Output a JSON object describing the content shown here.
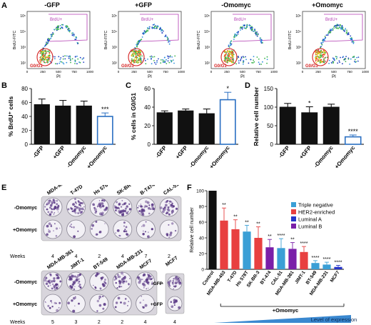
{
  "panels": {
    "A": "A",
    "B": "B",
    "C": "C",
    "D": "D",
    "E": "E",
    "F": "F"
  },
  "flow": {
    "titles": [
      "-GFP",
      "+GFP",
      "-Omomyc",
      "+Omomyc"
    ],
    "gate_brdu": "BrdU+",
    "gate_g0g1": "G0/G1",
    "ylabel": "BrdU-FITC",
    "xlabel": "PI",
    "yticks": [
      "10⁵",
      "10⁴",
      "10³",
      "10²"
    ],
    "xticks": [
      "0",
      "250",
      "500",
      "750",
      "1000"
    ]
  },
  "colors": {
    "black_bar": "#111111",
    "omomyc_bar": "#2a6fc2",
    "triple_negative": "#3a9fd6",
    "her2": "#e84040",
    "luminal_a": "#2635c9",
    "luminal_b": "#7a1fa8",
    "control": "#111111",
    "wedge": "#3a88d0"
  },
  "chart_data": [
    {
      "type": "bar",
      "categories": [
        "-GFP",
        "+GFP",
        "-Omomyc",
        "+Omomyc"
      ],
      "values": [
        57,
        55,
        55,
        40
      ],
      "errors": [
        8,
        8,
        7,
        5
      ],
      "ylabel": "% BrdU⁺ cells",
      "ylim": [
        0,
        80
      ],
      "yticks": [
        "0",
        "20",
        "40",
        "60",
        "80"
      ],
      "annotations": [
        "",
        "",
        "",
        "***"
      ]
    },
    {
      "type": "bar",
      "categories": [
        "-GFP",
        "+GFP",
        "-Omomyc",
        "+Omomyc"
      ],
      "values": [
        34,
        36,
        33,
        48
      ],
      "errors": [
        2,
        2,
        5,
        8
      ],
      "ylabel": "% cells in G0/G1",
      "ylim": [
        0,
        60
      ],
      "yticks": [
        "0",
        "20",
        "40",
        "60"
      ],
      "annotations": [
        "",
        "",
        "",
        "*"
      ]
    },
    {
      "type": "bar",
      "categories": [
        "-GFP",
        "+GFP",
        "-Omomyc",
        "+Omomyc"
      ],
      "values": [
        100,
        85,
        100,
        20
      ],
      "errors": [
        10,
        16,
        8,
        5
      ],
      "ylabel": "Relative cell number",
      "ylim": [
        0,
        150
      ],
      "yticks": [
        "0",
        "50",
        "100",
        "150"
      ],
      "annotations": [
        "",
        "*",
        "",
        "****"
      ]
    },
    {
      "type": "bar",
      "categories": [
        "Control",
        "MDA-MB-453",
        "T-47D",
        "Hs 578T",
        "SK-BR-3",
        "BT-474",
        "CAL-51",
        "MDA-MB-361",
        "JIMT-1",
        "BT-549",
        "MDA-MB-231",
        "MCF7"
      ],
      "values": [
        100,
        62,
        51,
        48,
        40,
        28,
        27,
        26,
        22,
        8,
        6,
        3
      ],
      "errors": [
        0,
        16,
        12,
        8,
        14,
        10,
        12,
        8,
        7,
        3,
        3,
        2
      ],
      "groups": [
        "control",
        "her2",
        "her2",
        "triple_negative",
        "her2",
        "luminal_b",
        "triple_negative",
        "luminal_b",
        "her2",
        "triple_negative",
        "triple_negative",
        "luminal_a"
      ],
      "ylabel": "Relative cell number",
      "ylim": [
        0,
        100
      ],
      "yticks": [
        "0",
        "20",
        "40",
        "60",
        "80",
        "100"
      ],
      "annotations": [
        "",
        "**",
        "**",
        "**",
        "**",
        "**",
        "****",
        "**",
        "****",
        "****",
        "****",
        "****"
      ],
      "legend": [
        "Triple negative",
        "HER2-enriched",
        "Luminal A",
        "Luminal B"
      ],
      "footer_treatment": "+Omomyc",
      "footer_level": "Level of expression"
    }
  ],
  "plates": {
    "top_lines": [
      "MDA-MB-453",
      "T-47D",
      "Hs 578T",
      "SK-BR-3",
      "B-T474",
      "CAL-51"
    ],
    "top_weeks": [
      "4",
      "4",
      "2",
      "4",
      "7",
      "2"
    ],
    "bottom_lines": [
      "MDA-MB-361",
      "JIMT-1",
      "BT-549",
      "MDA-MB-231",
      "MCF7"
    ],
    "bottom_weeks": [
      "5",
      "3",
      "2",
      "2",
      "4"
    ],
    "mcf7_single": "MCF7",
    "mcf7_single_weeks": "4",
    "minus_omomyc": "-Omomyc",
    "plus_omomyc": "+Omomyc",
    "minus_gfp": "-GFP",
    "plus_gfp": "+GFP",
    "weeks_label": "Weeks"
  }
}
